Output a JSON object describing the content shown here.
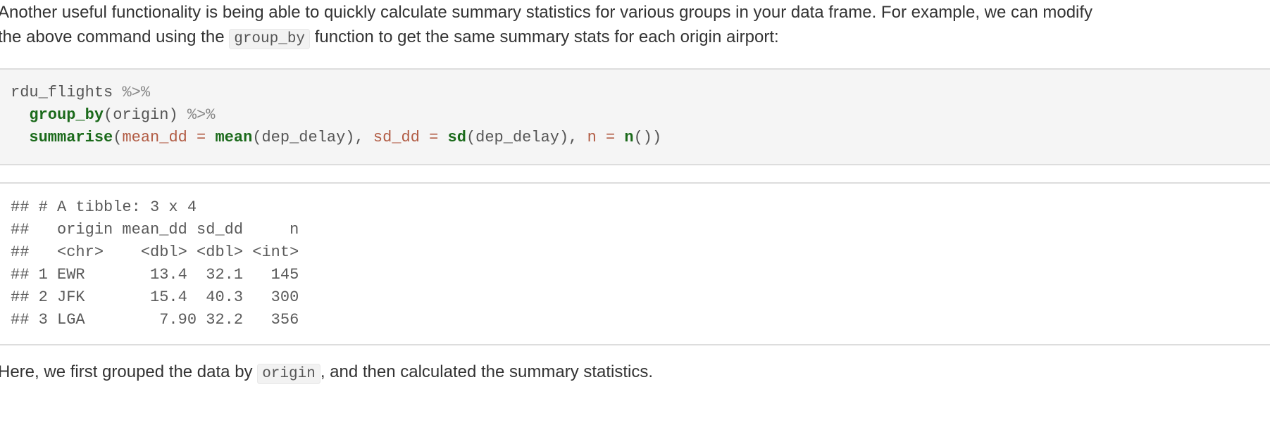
{
  "intro": {
    "line1": "Another useful functionality is being able to quickly calculate summary statistics for various groups in your data frame. For example, we can modify",
    "line2_before": "the above command using the ",
    "line2_code": "group_by",
    "line2_after": " function to get the same summary stats for each origin airport:"
  },
  "code": {
    "line1": {
      "obj": "rdu_flights ",
      "pipe": "%>%"
    },
    "line2": {
      "indent": "  ",
      "fn": "group_by",
      "open": "(",
      "arg": "origin",
      "close": ") ",
      "pipe": "%>%"
    },
    "line3": {
      "indent": "  ",
      "fn": "summarise",
      "open": "(",
      "arg1": "mean_dd",
      "eq1": " = ",
      "fn1": "mean",
      "val1": "(dep_delay), ",
      "arg2": "sd_dd",
      "eq2": " = ",
      "fn2": "sd",
      "val2": "(dep_delay), ",
      "arg3": "n",
      "eq3": " = ",
      "fn3": "n",
      "val3": "())"
    }
  },
  "output": {
    "lines": [
      "## # A tibble: 3 x 4",
      "##   origin mean_dd sd_dd     n",
      "##   <chr>    <dbl> <dbl> <int>",
      "## 1 EWR       13.4  32.1   145",
      "## 2 JFK       15.4  40.3   300",
      "## 3 LGA        7.90 32.2   356"
    ]
  },
  "after": {
    "before": "Here, we first grouped the data by ",
    "code": "origin",
    "after": ", and then calculated the summary statistics."
  }
}
